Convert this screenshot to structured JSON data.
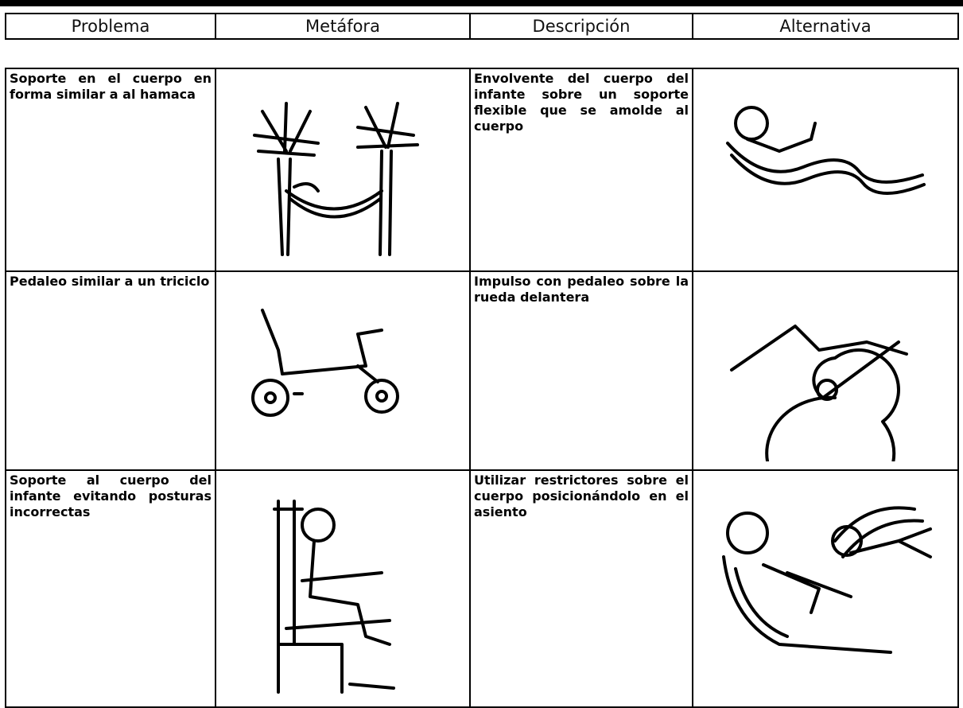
{
  "header": {
    "columns": [
      "Problema",
      "Metáfora",
      "Descripción",
      "Alternativa"
    ]
  },
  "table": {
    "rows": [
      [
        "Soporte en el cuerpo en forma similar a al hamaca",
        "Envolvente del cuerpo del infante sobre un soporte flexible que se amolde al cuerpo"
      ],
      [
        "Pedaleo similar a un triciclo",
        "Impulso con pedaleo sobre la rueda delantera"
      ],
      [
        "Soporte al cuerpo del infante evitando posturas incorrectas",
        "Utilizar restrictores sobre el cuerpo posicionándolo en el asiento"
      ]
    ]
  }
}
